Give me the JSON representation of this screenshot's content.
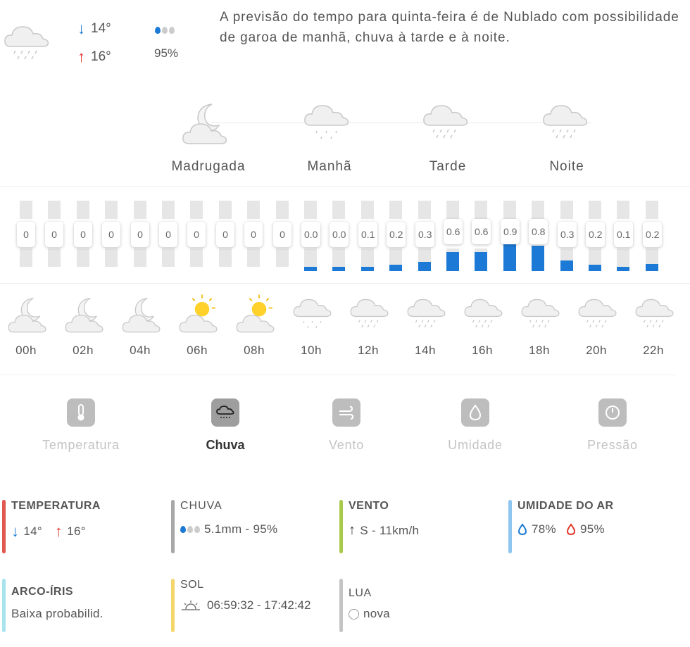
{
  "header": {
    "min_temp": "14°",
    "max_temp": "16°",
    "rain_probability": "95%",
    "summary": "A previsão do tempo para quinta-feira é de Nublado com possibilidade de garoa de manhã, chuva à tarde e à noite."
  },
  "periods": [
    {
      "label": "Madrugada",
      "icon": "cloud-moon-icon"
    },
    {
      "label": "Manhã",
      "icon": "cloud-drizzle-icon"
    },
    {
      "label": "Tarde",
      "icon": "cloud-rain-icon"
    },
    {
      "label": "Noite",
      "icon": "cloud-rain-icon"
    }
  ],
  "rain_bars": {
    "labels": [
      "0",
      "0",
      "0",
      "0",
      "0",
      "0",
      "0",
      "0",
      "0",
      "0",
      "0.0",
      "0.0",
      "0.1",
      "0.2",
      "0.3",
      "0.6",
      "0.6",
      "0.9",
      "0.8",
      "0.3",
      "0.2",
      "0.1",
      "0.2"
    ],
    "values": [
      0,
      0,
      0,
      0,
      0,
      0,
      0,
      0,
      0,
      0,
      0.04,
      0.04,
      0.1,
      0.2,
      0.3,
      0.6,
      0.6,
      0.9,
      0.8,
      0.34,
      0.2,
      0.1,
      0.22
    ]
  },
  "hours": [
    {
      "label": "00h",
      "icon": "cloud-moon-icon"
    },
    {
      "label": "02h",
      "icon": "cloud-moon-icon"
    },
    {
      "label": "04h",
      "icon": "cloud-moon-icon"
    },
    {
      "label": "06h",
      "icon": "cloud-sun-icon"
    },
    {
      "label": "08h",
      "icon": "cloud-sun-icon"
    },
    {
      "label": "10h",
      "icon": "cloud-drizzle-icon"
    },
    {
      "label": "12h",
      "icon": "cloud-rain-icon"
    },
    {
      "label": "14h",
      "icon": "cloud-rain-icon"
    },
    {
      "label": "16h",
      "icon": "cloud-rain-icon"
    },
    {
      "label": "18h",
      "icon": "cloud-rain-icon"
    },
    {
      "label": "20h",
      "icon": "cloud-rain-icon"
    },
    {
      "label": "22h",
      "icon": "cloud-rain-icon"
    }
  ],
  "tabs": [
    {
      "label": "Temperatura",
      "icon": "thermometer-icon",
      "active": false
    },
    {
      "label": "Chuva",
      "icon": "cloud-rain-icon",
      "active": true
    },
    {
      "label": "Vento",
      "icon": "wind-icon",
      "active": false
    },
    {
      "label": "Umidade",
      "icon": "drop-icon",
      "active": false
    },
    {
      "label": "Pressão",
      "icon": "gauge-icon",
      "active": false
    }
  ],
  "details": {
    "temperature": {
      "title": "TEMPERATURA",
      "min": "14°",
      "max": "16°",
      "color": "#e0584f"
    },
    "rain": {
      "title": "CHUVA",
      "value": "5.1mm - 95%",
      "color": "#a8a8a8"
    },
    "wind": {
      "title": "VENTO",
      "value": "S - 11km/h",
      "color": "#a9c94b"
    },
    "humidity": {
      "title": "UMIDADE DO AR",
      "min": "78%",
      "max": "95%",
      "color": "#8ec6f0"
    },
    "rainbow": {
      "title": "ARCO-ÍRIS",
      "value": "Baixa probabilid.",
      "color": "#a9e4ee"
    },
    "sun": {
      "title": "SOL",
      "value": "06:59:32 - 17:42:42",
      "color": "#f5d66a"
    },
    "moon": {
      "title": "LUA",
      "value": "nova",
      "color": "#c4c4c4"
    }
  }
}
